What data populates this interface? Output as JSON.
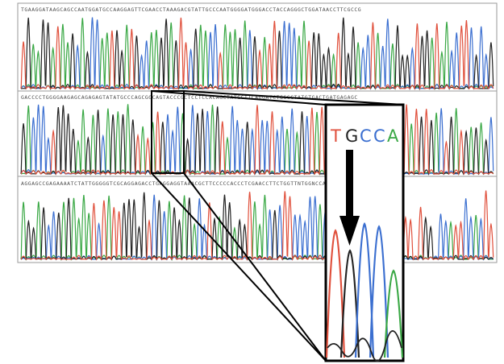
{
  "colors": {
    "A": "#3aa845",
    "C": "#3b6fd0",
    "G": "#222222",
    "T": "#e0503c",
    "frame": "#999999",
    "callout": "#000000"
  },
  "panel": {
    "rows": [
      {
        "sequence": "TGAAGGATAAGCAGCCAATGGATGCCAAGGAGTTCGAACCTAAAGACGTATTGCCCAATGGGGATGGGACCTACCAGGGCTGGATAACCTTCGCCG"
      },
      {
        "sequence": "GACCCCTGGGGAAGAGCAGAGAGTATATGCCCAGCGGCAGTACCCGCTCCTCCACAGCTATGCTTCAGGATCTGGGGTATGTGACTGATGAGAGC"
      },
      {
        "sequence": "AGGAGCCGAGAAAATCTATTGGGGGTCGCAGGAGACCTGAGGAGGTAAACGCTTCCCCCACCCTCGAACCTTCTGGTTNTGGNCCATTCCACTT"
      }
    ]
  },
  "zoom": {
    "sequence": [
      "T",
      "G",
      "C",
      "C",
      "A"
    ],
    "highlighted_base": "G",
    "arrow": "down-arrow"
  }
}
